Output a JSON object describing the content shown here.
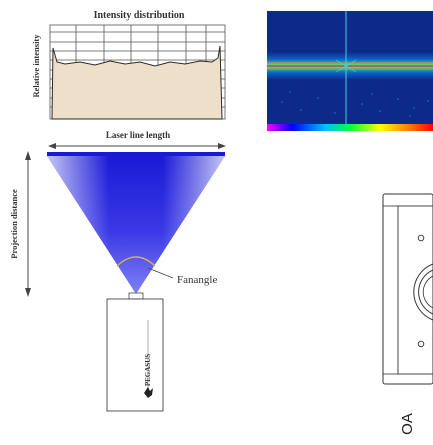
{
  "intensity_panel": {
    "title": "Intensity distribution",
    "ylabel": "Relative intensity"
  },
  "laser": {
    "line_length_label": "Laser line length",
    "projection_distance_label": "Projection distance",
    "fanangle_label": "Fanangle",
    "beam_color": "#1a1ad6"
  },
  "device": {
    "brand": "PEGASUS"
  },
  "side_view": {
    "label": "OA"
  },
  "colors": {
    "grid_line": "#555555",
    "profile_fill": "#eedfc8",
    "profile_line": "#2a2a2a",
    "camera_bg": "#0b2a8a",
    "camera_line": "#d83020",
    "crosshair": "#36d6e8"
  }
}
